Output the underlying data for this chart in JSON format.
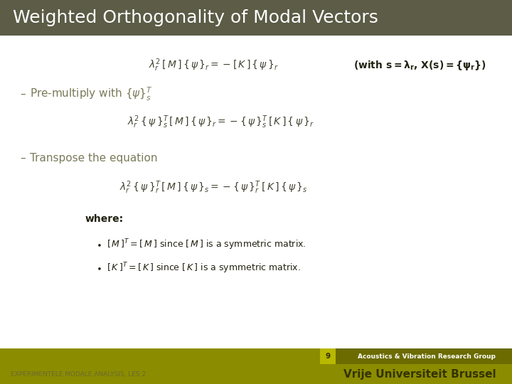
{
  "title": "Weighted Orthogonality of Modal Vectors",
  "title_bg_color": "#5c5c47",
  "title_text_color": "#ffffff",
  "content_bg_color": "#ffffff",
  "footer_bg_color": "#8c8c00",
  "footer_dark_color": "#6b6b00",
  "page_number": "9",
  "footer_left": "EXPERIMENTELE MODALE ANALYSIS, LES 2",
  "footer_right_top": "Acoustics & Vibration Research Group",
  "footer_right_bottom": "Vrije Universiteit Brussel",
  "accent_color": "#7a7a5a",
  "title_fontsize": 18,
  "eq_fontsize": 10,
  "bullet_fontsize": 11,
  "where_fontsize": 10,
  "sub_fontsize": 9,
  "aside_fontsize": 10
}
